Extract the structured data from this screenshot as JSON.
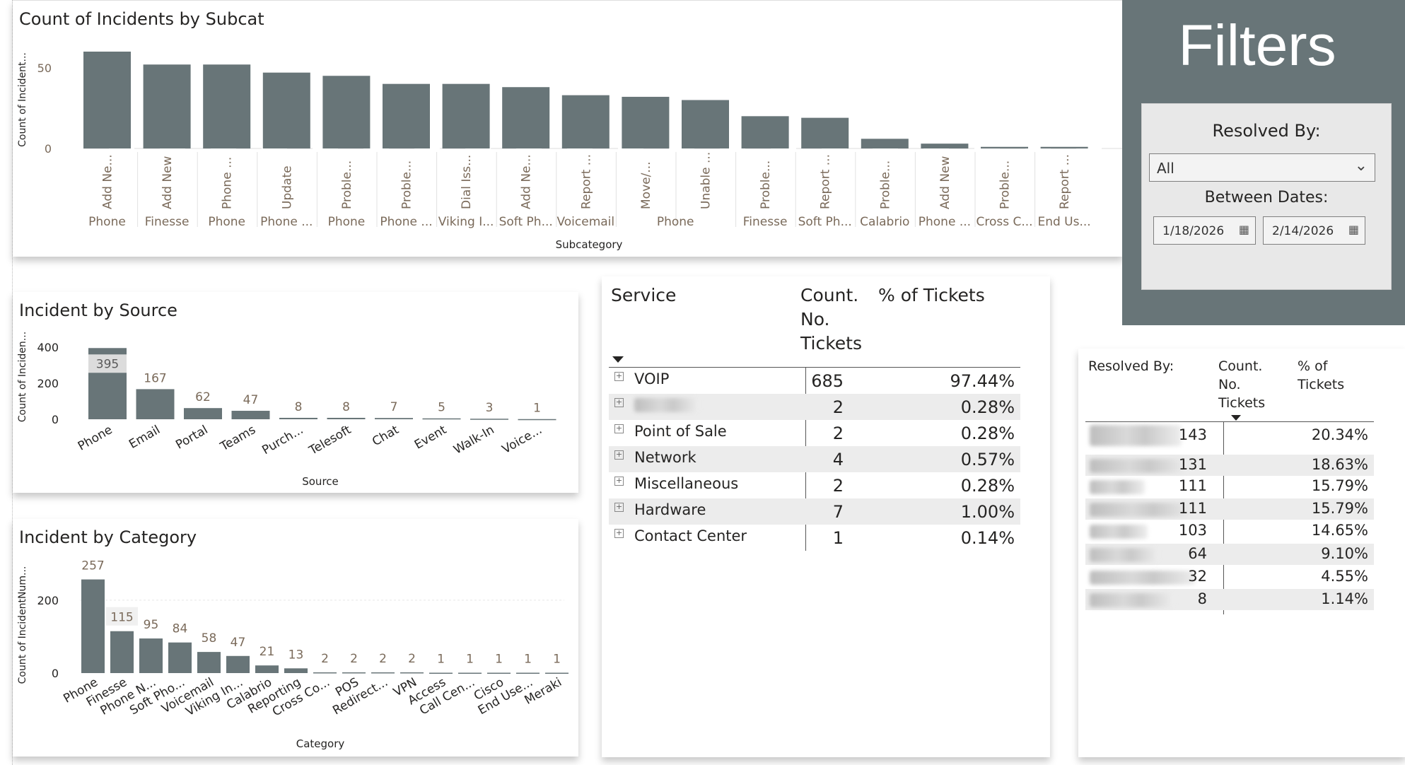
{
  "subcat_chart": {
    "title": "Count of Incidents by Subcat",
    "ylabel": "Count of Incident...",
    "xlabel": "Subcategory",
    "y_ticks": [
      "0",
      "50"
    ],
    "inner_labels": [
      "Add Ne...",
      "Add New",
      "Phone ...",
      "Update",
      "Proble...",
      "Proble...",
      "Dial Iss...",
      "Add Ne...",
      "Report ...",
      "Move/...",
      "Unable ...",
      "Proble...",
      "Report ...",
      "Proble...",
      "Add New",
      "Proble...",
      "Report ..."
    ],
    "outer_labels": [
      "Phone",
      "Finesse",
      "Phone",
      "Phone ...",
      "Phone",
      "Phone ...",
      "Viking I...",
      "Soft Ph...",
      "Voicemail",
      "Phone",
      "Finesse",
      "Soft Ph...",
      "Calabrio",
      "Phone ...",
      "Cross C...",
      "End Us..."
    ],
    "color": "#687578"
  },
  "source_chart": {
    "title": "Incident by Source",
    "ylabel": "Count of Inciden...",
    "xlabel": "Source",
    "y_ticks": [
      "0",
      "200",
      "400"
    ],
    "color": "#687578"
  },
  "category_chart": {
    "title": "Incident by Category",
    "ylabel": "Count of IncidentNum...",
    "xlabel": "Category",
    "y_ticks": [
      "0",
      "200"
    ],
    "color": "#687578"
  },
  "chart_data": [
    {
      "type": "bar",
      "title": "Count of Incidents by Subcat",
      "xlabel": "Subcategory",
      "ylabel": "Count of Incident...",
      "categories": [
        "Add Ne... / Phone",
        "Add New / Finesse",
        "Phone ... / Phone",
        "Update / Phone ...",
        "Proble... / Phone",
        "Proble... / Phone ...",
        "Dial Iss... / Viking I...",
        "Add Ne... / Soft Ph...",
        "Report ... / Voicemail",
        "Move/... / Phone",
        "Unable ... / Phone",
        "Proble... / Finesse",
        "Report ... / Soft Ph...",
        "Proble... / Calabrio",
        "Add New / Phone ...",
        "Proble... / Cross C...",
        "Report ... / End Us..."
      ],
      "values": [
        60,
        52,
        52,
        47,
        45,
        40,
        40,
        38,
        33,
        32,
        30,
        20,
        19,
        6,
        3,
        1,
        1
      ],
      "ylim": [
        0,
        60
      ],
      "grid": false
    },
    {
      "type": "bar",
      "title": "Incident by Source",
      "xlabel": "Source",
      "ylabel": "Count of Inciden...",
      "categories": [
        "Phone",
        "Email",
        "Portal",
        "Teams",
        "Purch...",
        "Telesoft",
        "Chat",
        "Event",
        "Walk-In",
        "Voice..."
      ],
      "values": [
        395,
        167,
        62,
        47,
        8,
        8,
        7,
        5,
        3,
        1
      ],
      "ylim": [
        0,
        400
      ]
    },
    {
      "type": "bar",
      "title": "Incident by Category",
      "xlabel": "Category",
      "ylabel": "Count of IncidentNum...",
      "categories": [
        "Phone",
        "Finesse",
        "Phone N...",
        "Soft Pho...",
        "Voicemail",
        "Viking In...",
        "Calabrio",
        "Reporting",
        "Cross Co...",
        "POS",
        "Redirect...",
        "VPN",
        "Access",
        "Call Cen...",
        "Cisco",
        "End Use...",
        "Meraki"
      ],
      "values": [
        257,
        115,
        95,
        84,
        58,
        47,
        21,
        13,
        2,
        2,
        2,
        2,
        1,
        1,
        1,
        1,
        1
      ],
      "ylim": [
        0,
        260
      ]
    },
    {
      "type": "table",
      "columns": [
        "Service",
        "Count. No. Tickets",
        "% of Tickets"
      ],
      "rows": [
        [
          "VOIP",
          685,
          "97.44%"
        ],
        [
          "(redacted)",
          2,
          "0.28%"
        ],
        [
          "Point of Sale",
          2,
          "0.28%"
        ],
        [
          "Network",
          4,
          "0.57%"
        ],
        [
          "Miscellaneous",
          2,
          "0.28%"
        ],
        [
          "Hardware",
          7,
          "1.00%"
        ],
        [
          "Contact Center",
          1,
          "0.14%"
        ]
      ]
    },
    {
      "type": "table",
      "columns": [
        "Resolved By:",
        "Count. No. Tickets",
        "% of Tickets"
      ],
      "rows": [
        [
          "(redacted)",
          143,
          "20.34%"
        ],
        [
          "(redacted)",
          131,
          "18.63%"
        ],
        [
          "(redacted)",
          111,
          "15.79%"
        ],
        [
          "(redacted)",
          111,
          "15.79%"
        ],
        [
          "(redacted)",
          103,
          "14.65%"
        ],
        [
          "(redacted)",
          64,
          "9.10%"
        ],
        [
          "(redacted)",
          32,
          "4.55%"
        ],
        [
          "(redacted)",
          8,
          "1.14%"
        ]
      ]
    }
  ],
  "service_table": {
    "headers": {
      "service": "Service",
      "count_l1": "Count.",
      "count_l2": "No.",
      "count_l3": "Tickets",
      "pct": "% of Tickets"
    },
    "rows": [
      {
        "name": "VOIP",
        "count": "685",
        "pct": "97.44%"
      },
      {
        "name": "",
        "count": "2",
        "pct": "0.28%"
      },
      {
        "name": "Point of Sale",
        "count": "2",
        "pct": "0.28%"
      },
      {
        "name": "Network",
        "count": "4",
        "pct": "0.57%"
      },
      {
        "name": "Miscellaneous",
        "count": "2",
        "pct": "0.28%"
      },
      {
        "name": "Hardware",
        "count": "7",
        "pct": "1.00%"
      },
      {
        "name": "Contact Center",
        "count": "1",
        "pct": "0.14%"
      }
    ]
  },
  "resolved_table": {
    "headers": {
      "name": "Resolved By:",
      "count_l1": "Count.",
      "count_l2": "No.",
      "count_l3": "Tickets",
      "pct_l1": "% of",
      "pct_l2": "Tickets"
    },
    "rows": [
      {
        "count": "143",
        "pct": "20.34%"
      },
      {
        "count": "131",
        "pct": "18.63%"
      },
      {
        "count": "111",
        "pct": "15.79%"
      },
      {
        "count": "111",
        "pct": "15.79%"
      },
      {
        "count": "103",
        "pct": "14.65%"
      },
      {
        "count": "64",
        "pct": "9.10%"
      },
      {
        "count": "32",
        "pct": "4.55%"
      },
      {
        "count": "8",
        "pct": "1.14%"
      }
    ]
  },
  "filters": {
    "title": "Filters",
    "resolved_label": "Resolved By:",
    "resolved_value": "All",
    "dates_label": "Between Dates:",
    "start_date": "1/18/2026",
    "end_date": "2/14/2026",
    "panel_color": "#687578"
  }
}
